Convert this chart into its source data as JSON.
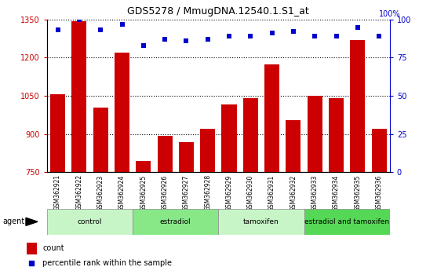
{
  "title": "GDS5278 / MmugDNA.12540.1.S1_at",
  "samples": [
    "GSM362921",
    "GSM362922",
    "GSM362923",
    "GSM362924",
    "GSM362925",
    "GSM362926",
    "GSM362927",
    "GSM362928",
    "GSM362929",
    "GSM362930",
    "GSM362931",
    "GSM362932",
    "GSM362933",
    "GSM362934",
    "GSM362935",
    "GSM362936"
  ],
  "counts": [
    1058,
    1342,
    1005,
    1220,
    795,
    893,
    868,
    920,
    1015,
    1040,
    1175,
    955,
    1050,
    1040,
    1270,
    920
  ],
  "percentiles": [
    93,
    100,
    93,
    97,
    83,
    87,
    86,
    87,
    89,
    89,
    91,
    92,
    89,
    89,
    95,
    89
  ],
  "groups": [
    {
      "label": "control",
      "start": 0,
      "end": 4,
      "color": "#c8f5c8"
    },
    {
      "label": "estradiol",
      "start": 4,
      "end": 8,
      "color": "#88e888"
    },
    {
      "label": "tamoxifen",
      "start": 8,
      "end": 12,
      "color": "#c8f5c8"
    },
    {
      "label": "estradiol and tamoxifen",
      "start": 12,
      "end": 16,
      "color": "#55d855"
    }
  ],
  "bar_color": "#cc0000",
  "dot_color": "#0000cc",
  "ylim_left": [
    750,
    1350
  ],
  "ylim_right": [
    0,
    100
  ],
  "yticks_left": [
    750,
    900,
    1050,
    1200,
    1350
  ],
  "yticks_right": [
    0,
    25,
    50,
    75,
    100
  ],
  "legend_count_label": "count",
  "legend_pct_label": "percentile rank within the sample",
  "agent_label": "agent"
}
